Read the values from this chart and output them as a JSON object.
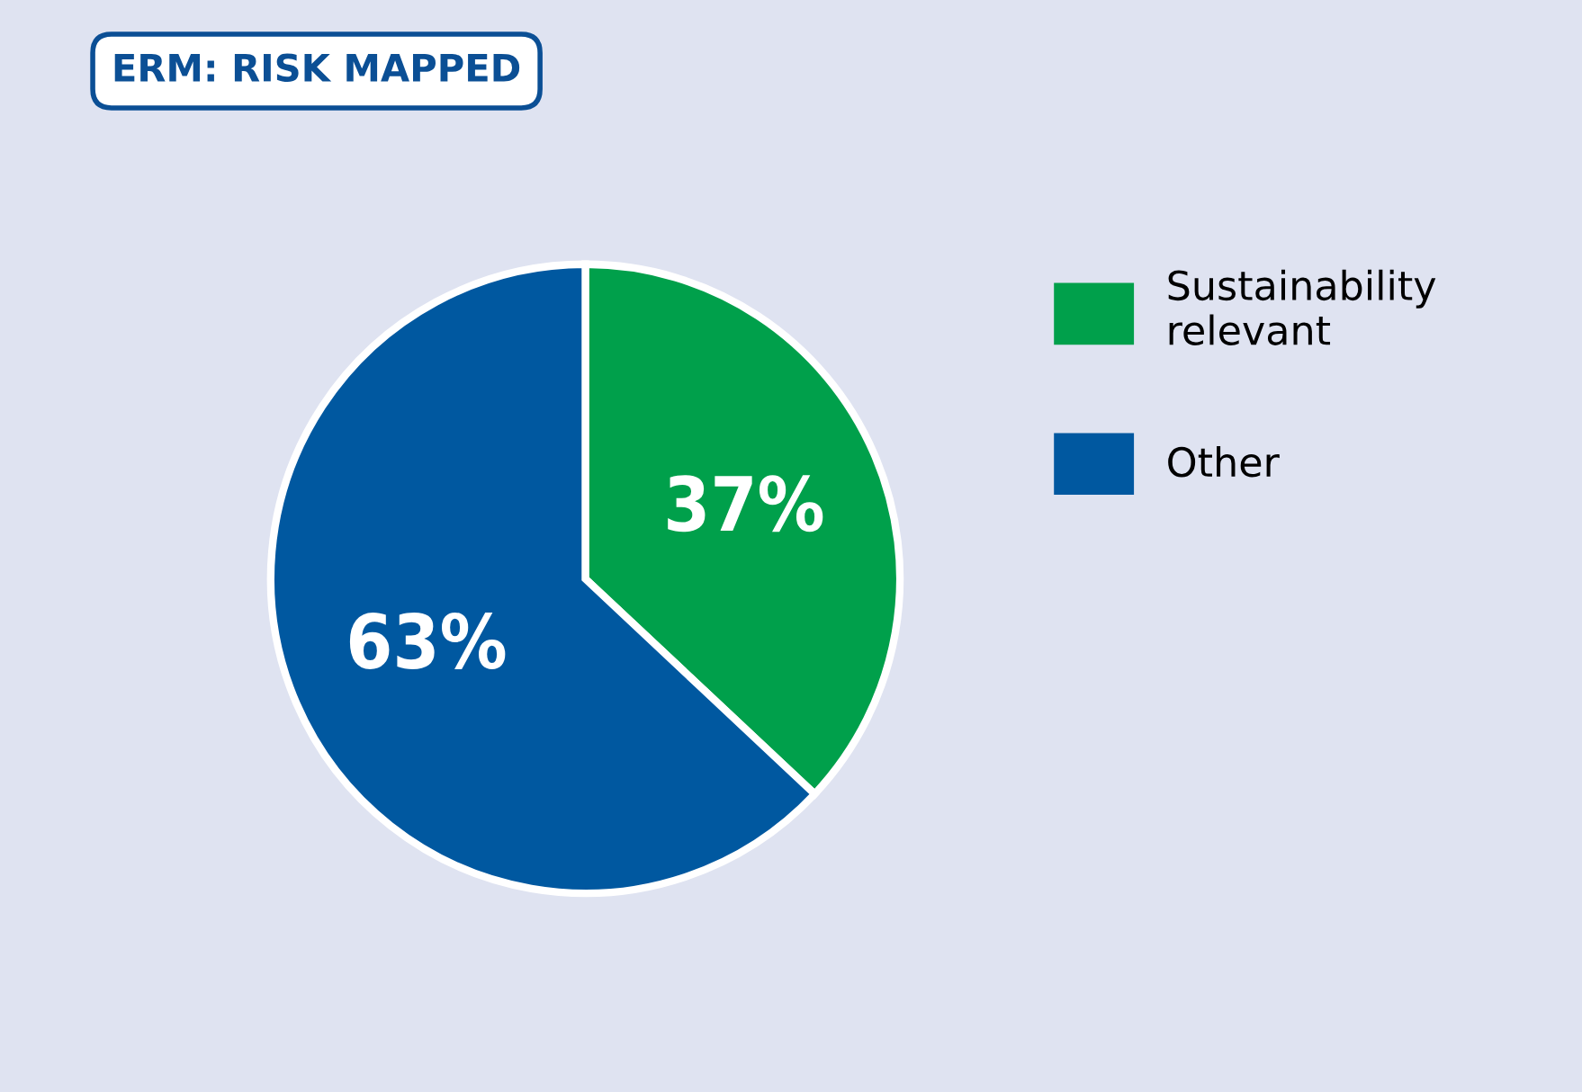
{
  "chart_data": {
    "type": "pie",
    "title": "ERM: RISK MAPPED",
    "categories": [
      "Sustainability\nrelevant",
      "Other"
    ],
    "values": [
      37,
      63
    ],
    "colors": [
      "#00a04b",
      "#0058a0"
    ],
    "value_labels": [
      "37%",
      "63%"
    ],
    "legend": "right"
  }
}
